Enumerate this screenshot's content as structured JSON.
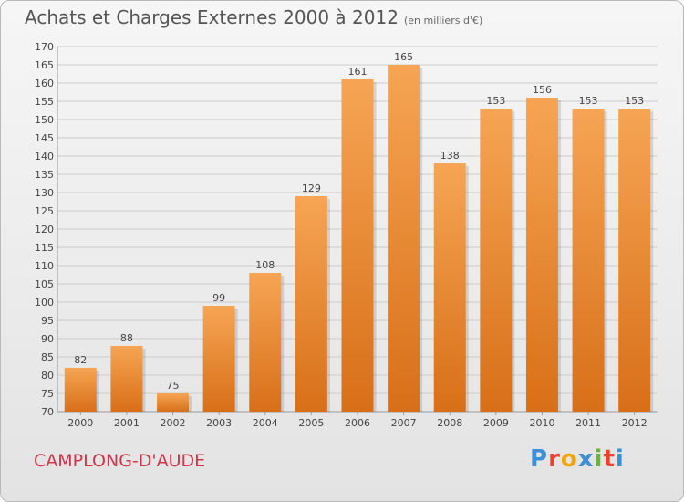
{
  "header": {
    "title": "Achats et Charges Externes 2000 à 2012",
    "unit": "(en milliers d'€)"
  },
  "footer": {
    "commune": "CAMPLONG-D'AUDE",
    "logo": "Proxiti"
  },
  "colors": {
    "bar_light": "#f6a554",
    "bar_dark": "#d86f18",
    "grid": "#cccccc",
    "commune_text": "#d0334a"
  },
  "chart_data": {
    "type": "bar",
    "categories": [
      "2000",
      "2001",
      "2002",
      "2003",
      "2004",
      "2005",
      "2006",
      "2007",
      "2008",
      "2009",
      "2010",
      "2011",
      "2012"
    ],
    "values": [
      82,
      88,
      75,
      99,
      108,
      129,
      161,
      165,
      138,
      153,
      156,
      153,
      153
    ],
    "title": "Achats et Charges Externes 2000 à 2012",
    "ylim": [
      70,
      170
    ],
    "yticks": [
      70,
      75,
      80,
      85,
      90,
      95,
      100,
      105,
      110,
      115,
      120,
      125,
      130,
      135,
      140,
      145,
      150,
      155,
      160,
      165,
      170
    ],
    "grid": true
  }
}
